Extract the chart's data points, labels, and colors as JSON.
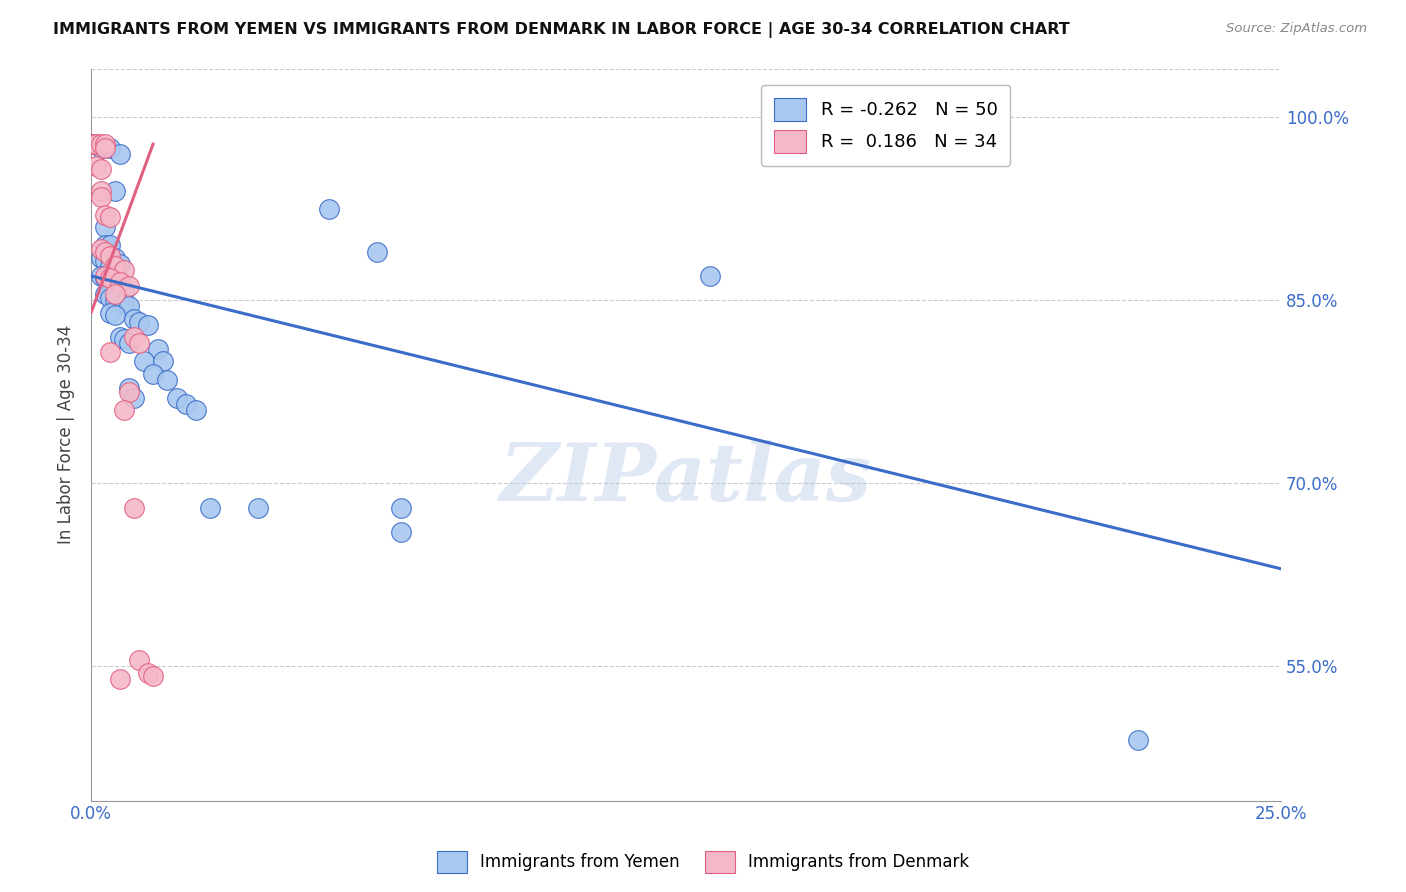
{
  "title": "IMMIGRANTS FROM YEMEN VS IMMIGRANTS FROM DENMARK IN LABOR FORCE | AGE 30-34 CORRELATION CHART",
  "source": "Source: ZipAtlas.com",
  "ylabel": "In Labor Force | Age 30-34",
  "xlim": [
    0.0,
    0.25
  ],
  "ylim": [
    0.44,
    1.04
  ],
  "yticks": [
    0.55,
    0.7,
    0.85,
    1.0
  ],
  "ytick_labels": [
    "55.0%",
    "70.0%",
    "85.0%",
    "100.0%"
  ],
  "xticks": [
    0.0,
    0.05,
    0.1,
    0.15,
    0.2,
    0.25
  ],
  "xtick_labels": [
    "0.0%",
    "",
    "",
    "",
    "",
    "25.0%"
  ],
  "blue_R": -0.262,
  "blue_N": 50,
  "pink_R": 0.186,
  "pink_N": 34,
  "blue_color": "#A8C8F0",
  "pink_color": "#F5B8C8",
  "blue_line_color": "#3A6CC8",
  "pink_line_color": "#E06080",
  "watermark": "ZIPatlas",
  "scatter_blue": [
    [
      0.002,
      0.975
    ],
    [
      0.003,
      0.975
    ],
    [
      0.004,
      0.975
    ],
    [
      0.006,
      0.97
    ],
    [
      0.005,
      0.94
    ],
    [
      0.003,
      0.91
    ],
    [
      0.003,
      0.895
    ],
    [
      0.004,
      0.895
    ],
    [
      0.002,
      0.885
    ],
    [
      0.003,
      0.882
    ],
    [
      0.004,
      0.878
    ],
    [
      0.005,
      0.885
    ],
    [
      0.006,
      0.88
    ],
    [
      0.002,
      0.87
    ],
    [
      0.003,
      0.868
    ],
    [
      0.004,
      0.865
    ],
    [
      0.005,
      0.862
    ],
    [
      0.006,
      0.86
    ],
    [
      0.007,
      0.858
    ],
    [
      0.003,
      0.855
    ],
    [
      0.004,
      0.852
    ],
    [
      0.005,
      0.85
    ],
    [
      0.007,
      0.848
    ],
    [
      0.008,
      0.845
    ],
    [
      0.004,
      0.84
    ],
    [
      0.005,
      0.838
    ],
    [
      0.009,
      0.835
    ],
    [
      0.01,
      0.832
    ],
    [
      0.012,
      0.83
    ],
    [
      0.006,
      0.82
    ],
    [
      0.007,
      0.818
    ],
    [
      0.008,
      0.815
    ],
    [
      0.014,
      0.81
    ],
    [
      0.011,
      0.8
    ],
    [
      0.015,
      0.8
    ],
    [
      0.013,
      0.79
    ],
    [
      0.016,
      0.785
    ],
    [
      0.008,
      0.778
    ],
    [
      0.009,
      0.77
    ],
    [
      0.018,
      0.77
    ],
    [
      0.02,
      0.765
    ],
    [
      0.022,
      0.76
    ],
    [
      0.05,
      0.925
    ],
    [
      0.06,
      0.89
    ],
    [
      0.065,
      0.68
    ],
    [
      0.065,
      0.66
    ],
    [
      0.025,
      0.68
    ],
    [
      0.035,
      0.68
    ],
    [
      0.13,
      0.87
    ],
    [
      0.22,
      0.49
    ]
  ],
  "scatter_pink": [
    [
      0.0,
      0.978
    ],
    [
      0.0,
      0.978
    ],
    [
      0.0,
      0.978
    ],
    [
      0.001,
      0.978
    ],
    [
      0.001,
      0.978
    ],
    [
      0.002,
      0.978
    ],
    [
      0.003,
      0.978
    ],
    [
      0.003,
      0.975
    ],
    [
      0.001,
      0.96
    ],
    [
      0.002,
      0.958
    ],
    [
      0.002,
      0.94
    ],
    [
      0.002,
      0.935
    ],
    [
      0.003,
      0.92
    ],
    [
      0.004,
      0.918
    ],
    [
      0.002,
      0.892
    ],
    [
      0.003,
      0.89
    ],
    [
      0.004,
      0.886
    ],
    [
      0.005,
      0.878
    ],
    [
      0.007,
      0.875
    ],
    [
      0.003,
      0.87
    ],
    [
      0.004,
      0.868
    ],
    [
      0.006,
      0.865
    ],
    [
      0.008,
      0.862
    ],
    [
      0.005,
      0.855
    ],
    [
      0.009,
      0.82
    ],
    [
      0.01,
      0.815
    ],
    [
      0.004,
      0.808
    ],
    [
      0.008,
      0.775
    ],
    [
      0.007,
      0.76
    ],
    [
      0.009,
      0.68
    ],
    [
      0.01,
      0.555
    ],
    [
      0.006,
      0.54
    ],
    [
      0.012,
      0.545
    ],
    [
      0.013,
      0.542
    ]
  ],
  "blue_line": [
    [
      0.0,
      0.87
    ],
    [
      0.25,
      0.63
    ]
  ],
  "pink_line": [
    [
      0.0,
      0.84
    ],
    [
      0.013,
      0.978
    ]
  ]
}
